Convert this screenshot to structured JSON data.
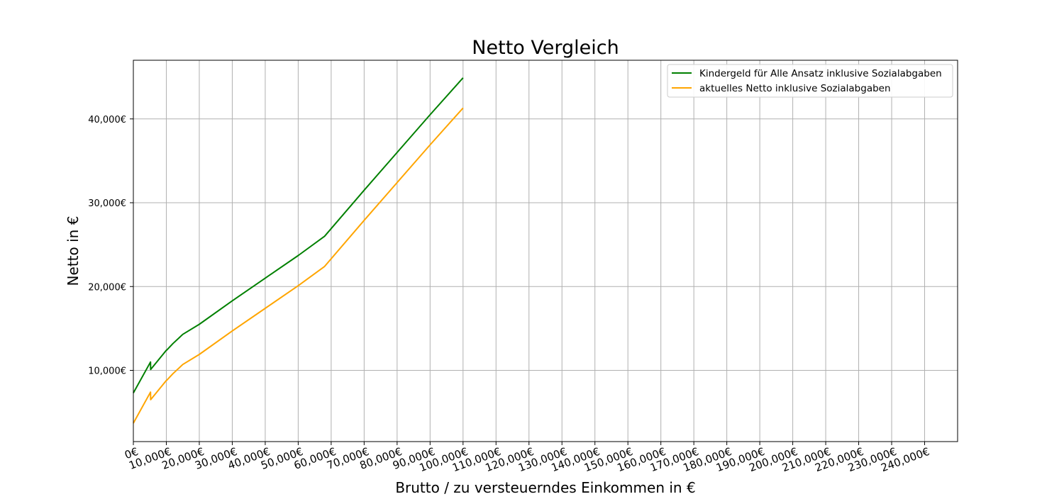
{
  "chart_data": {
    "type": "line",
    "title": "Netto Vergleich",
    "xlabel": "Brutto / zu versteuerndes Einkommen in €",
    "ylabel": "Netto in €",
    "xlim": [
      0,
      250000
    ],
    "ylim": [
      1500,
      47000
    ],
    "grid": true,
    "legend_position": "top-right",
    "x_ticks": [
      0,
      10000,
      20000,
      30000,
      40000,
      50000,
      60000,
      70000,
      80000,
      90000,
      100000,
      110000,
      120000,
      130000,
      140000,
      150000,
      160000,
      170000,
      180000,
      190000,
      200000,
      210000,
      220000,
      230000,
      240000
    ],
    "x_tick_labels": [
      "0€",
      "10,000€",
      "20,000€",
      "30,000€",
      "40,000€",
      "50,000€",
      "60,000€",
      "70,000€",
      "80,000€",
      "90,000€",
      "100,000€",
      "110,000€",
      "120,000€",
      "130,000€",
      "140,000€",
      "150,000€",
      "160,000€",
      "170,000€",
      "180,000€",
      "190,000€",
      "200,000€",
      "210,000€",
      "220,000€",
      "230,000€",
      "240,000€"
    ],
    "y_ticks": [
      10000,
      20000,
      30000,
      40000
    ],
    "y_tick_labels": [
      "10,000€",
      "20,000€",
      "30,000€",
      "40,000€"
    ],
    "series": [
      {
        "name": "Kindergeld für Alle Ansatz inklusive Sozialabgaben",
        "color": "#008000",
        "x": [
          0,
          5200,
          5250,
          10000,
          10100,
          12000,
          15000,
          20000,
          30000,
          40000,
          50000,
          58000,
          70000,
          80000,
          90000,
          100000
        ],
        "y": [
          7300,
          11000,
          10100,
          12400,
          12400,
          13200,
          14300,
          15500,
          18300,
          21000,
          23700,
          26000,
          31500,
          36000,
          40500,
          44900
        ]
      },
      {
        "name": "aktuelles Netto inklusive Sozialabgaben",
        "color": "#ffa500",
        "x": [
          0,
          5200,
          5250,
          10000,
          10100,
          12000,
          15000,
          20000,
          30000,
          40000,
          50000,
          58000,
          70000,
          80000,
          90000,
          100000
        ],
        "y": [
          3700,
          7400,
          6500,
          8800,
          8800,
          9600,
          10700,
          11900,
          14700,
          17400,
          20100,
          22400,
          27900,
          32400,
          36900,
          41300
        ]
      }
    ]
  }
}
